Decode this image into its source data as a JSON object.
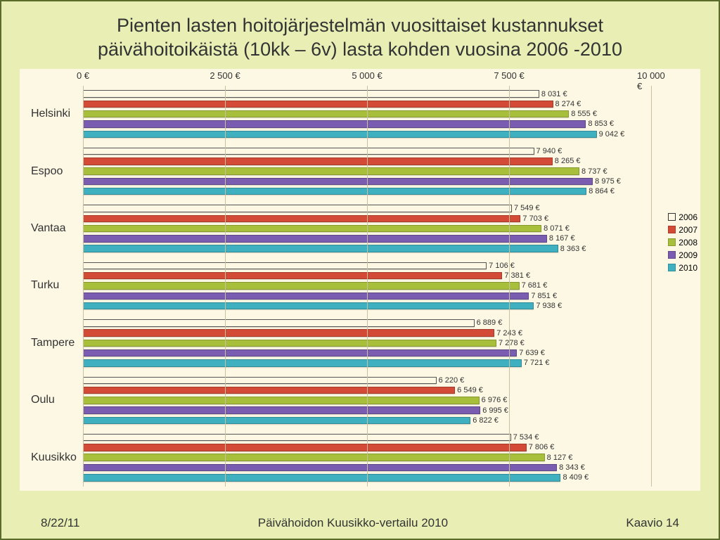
{
  "title_line1": "Pienten lasten hoitojärjestelmän vuosittaiset kustannukset",
  "title_line2": "päivähoitoikäistä (10kk – 6v) lasta kohden vuosina 2006 -2010",
  "footer": {
    "date": "8/22/11",
    "center": "Päivähoidon Kuusikko-vertailu 2010",
    "right": "Kaavio 14"
  },
  "chart": {
    "type": "bar",
    "x_max": 10000,
    "x_ticks": [
      {
        "value": 0,
        "label": "0 €"
      },
      {
        "value": 2500,
        "label": "2 500 €"
      },
      {
        "value": 5000,
        "label": "5 000 €"
      },
      {
        "value": 7500,
        "label": "7 500 €"
      },
      {
        "value": 10000,
        "label": "10 000 €"
      }
    ],
    "background_color": "#fdf8e4",
    "grid_color": "#c9c0a0",
    "label_fontsize": 16,
    "value_fontsize": 11,
    "series": [
      {
        "name": "2006",
        "color": "#fdf8e4",
        "border": "#555555",
        "hollow": true
      },
      {
        "name": "2007",
        "color": "#d34b36",
        "border": "#a53a2a"
      },
      {
        "name": "2008",
        "color": "#a8bf3c",
        "border": "#86992f"
      },
      {
        "name": "2009",
        "color": "#7a5cb0",
        "border": "#5d4688"
      },
      {
        "name": "2010",
        "color": "#3fb0c0",
        "border": "#318a96"
      }
    ],
    "categories": [
      {
        "label": "Helsinki",
        "values": [
          8031,
          8274,
          8555,
          8853,
          9042
        ]
      },
      {
        "label": "Espoo",
        "values": [
          7940,
          8265,
          8737,
          8975,
          8864
        ]
      },
      {
        "label": "Vantaa",
        "values": [
          7549,
          7703,
          8071,
          8167,
          8363
        ]
      },
      {
        "label": "Turku",
        "values": [
          7106,
          7381,
          7681,
          7851,
          7938
        ]
      },
      {
        "label": "Tampere",
        "values": [
          6889,
          7243,
          7278,
          7639,
          7721
        ]
      },
      {
        "label": "Oulu",
        "values": [
          6220,
          6549,
          6976,
          6995,
          6822
        ]
      },
      {
        "label": "Kuusikko",
        "values": [
          7534,
          7806,
          8127,
          8343,
          8409
        ]
      }
    ]
  }
}
